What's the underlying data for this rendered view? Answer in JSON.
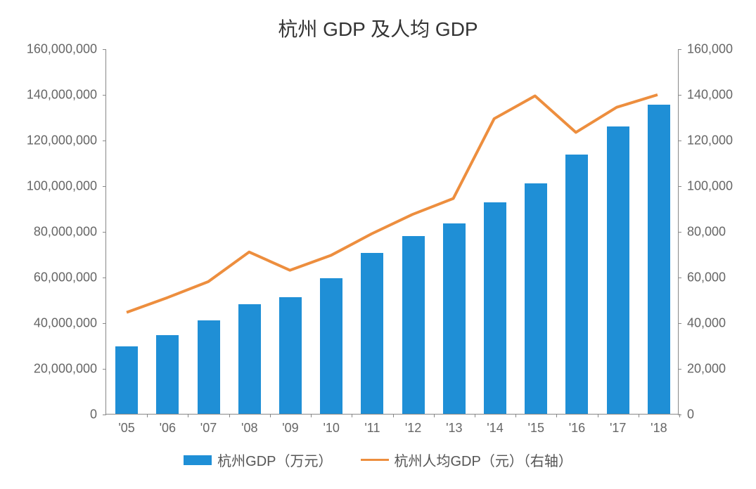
{
  "chart": {
    "type": "bar+line",
    "title": "杭州 GDP 及人均 GDP",
    "title_fontsize": 28,
    "background_color": "#ffffff",
    "categories": [
      "'05",
      "'06",
      "'07",
      "'08",
      "'09",
      "'10",
      "'11",
      "'12",
      "'13",
      "'14",
      "'15",
      "'16",
      "'17",
      "'18"
    ],
    "bar_series": {
      "name": "杭州GDP（万元）",
      "values": [
        29500000,
        34500000,
        41000000,
        48000000,
        51000000,
        59500000,
        70500000,
        78000000,
        83500000,
        92500000,
        101000000,
        113500000,
        126000000,
        135500000
      ],
      "color": "#1f8fd6",
      "bar_width_ratio": 0.55
    },
    "line_series": {
      "name": "杭州人均GDP（元）（右轴）",
      "values": [
        44500,
        51000,
        58000,
        71000,
        63000,
        69500,
        79000,
        87500,
        94500,
        129500,
        139500,
        123500,
        134500,
        140000
      ],
      "color": "#ed8e3e",
      "line_width": 4
    },
    "y_left": {
      "min": 0,
      "max": 160000000,
      "step": 20000000,
      "labels": [
        "0",
        "20,000,000",
        "40,000,000",
        "60,000,000",
        "80,000,000",
        "100,000,000",
        "120,000,000",
        "140,000,000",
        "160,000,000"
      ]
    },
    "y_right": {
      "min": 0,
      "max": 160000,
      "step": 20000,
      "labels": [
        "0",
        "20,000",
        "40,000",
        "60,000",
        "80,000",
        "100,000",
        "120,000",
        "140,000",
        "160,000"
      ]
    },
    "axis_color": "#888888",
    "label_color": "#666666",
    "label_fontsize": 18,
    "legend": {
      "bar_label": "杭州GDP（万元）",
      "line_label": "杭州人均GDP（元）（右轴）"
    }
  }
}
